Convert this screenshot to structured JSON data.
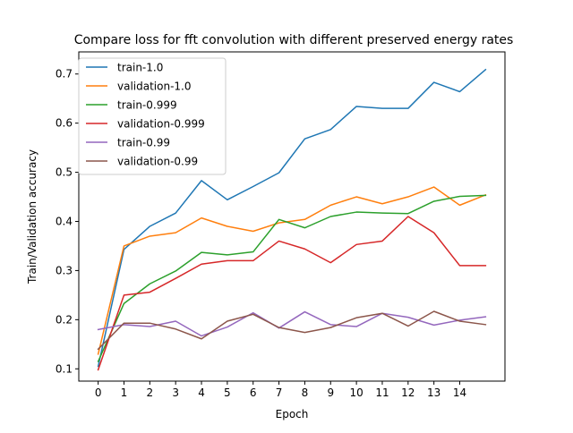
{
  "chart_data": {
    "type": "line",
    "title": "Compare loss for fft convolution with different preserved energy rates",
    "xlabel": "Epoch",
    "ylabel": "Train/Validation accuracy",
    "xlim": [
      -0.75,
      15.75
    ],
    "ylim": [
      0.075,
      0.745
    ],
    "x": [
      0,
      1,
      2,
      3,
      4,
      5,
      6,
      7,
      8,
      9,
      10,
      11,
      12,
      13,
      14,
      15
    ],
    "x_ticks": [
      "0",
      "1",
      "2",
      "3",
      "4",
      "5",
      "6",
      "7",
      "8",
      "9",
      "10",
      "11",
      "12",
      "13",
      "14"
    ],
    "y_ticks": [
      "0.1",
      "0.2",
      "0.3",
      "0.4",
      "0.5",
      "0.6",
      "0.7"
    ],
    "grid": false,
    "legend_position": "top-left",
    "series": [
      {
        "name": "train-1.0",
        "color": "#1f77b4",
        "values": [
          0.105,
          0.343,
          0.39,
          0.417,
          0.483,
          0.444,
          0.471,
          0.499,
          0.568,
          0.587,
          0.634,
          0.63,
          0.63,
          0.683,
          0.664,
          0.709
        ]
      },
      {
        "name": "validation-1.0",
        "color": "#ff7f0e",
        "values": [
          0.13,
          0.35,
          0.37,
          0.377,
          0.407,
          0.39,
          0.38,
          0.397,
          0.404,
          0.433,
          0.45,
          0.436,
          0.45,
          0.47,
          0.433,
          0.454
        ]
      },
      {
        "name": "train-0.999",
        "color": "#2ca02c",
        "values": [
          0.115,
          0.233,
          0.273,
          0.299,
          0.337,
          0.332,
          0.338,
          0.404,
          0.387,
          0.41,
          0.419,
          0.417,
          0.416,
          0.441,
          0.451,
          0.453
        ]
      },
      {
        "name": "validation-0.999",
        "color": "#d62728",
        "values": [
          0.098,
          0.25,
          0.256,
          0.284,
          0.313,
          0.32,
          0.32,
          0.36,
          0.344,
          0.316,
          0.353,
          0.36,
          0.41,
          0.377,
          0.31,
          0.31
        ]
      },
      {
        "name": "train-0.99",
        "color": "#9467bd",
        "values": [
          0.18,
          0.19,
          0.186,
          0.197,
          0.167,
          0.185,
          0.214,
          0.183,
          0.216,
          0.19,
          0.186,
          0.213,
          0.205,
          0.189,
          0.199,
          0.206
        ]
      },
      {
        "name": "validation-0.99",
        "color": "#8c564b",
        "values": [
          0.14,
          0.193,
          0.193,
          0.181,
          0.161,
          0.197,
          0.211,
          0.184,
          0.174,
          0.184,
          0.204,
          0.213,
          0.187,
          0.217,
          0.197,
          0.19
        ]
      }
    ]
  }
}
